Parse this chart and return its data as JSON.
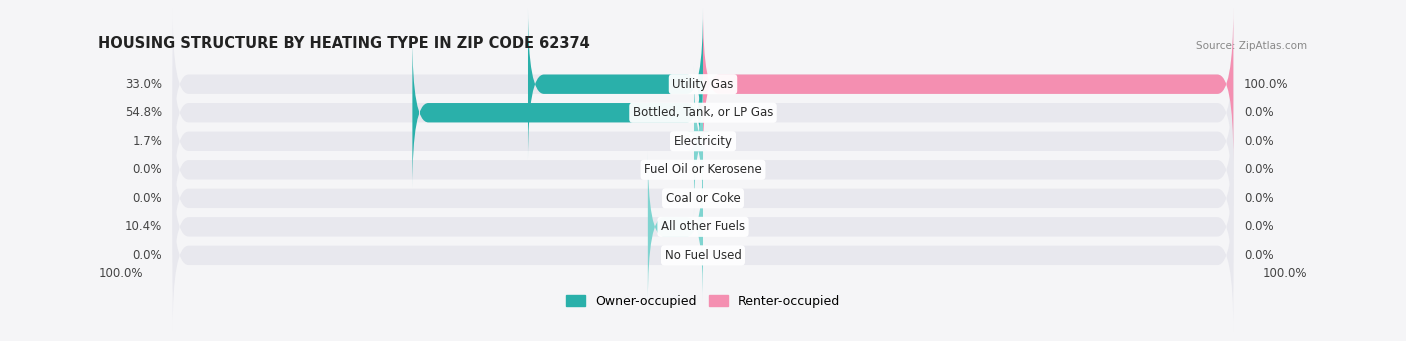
{
  "title": "HOUSING STRUCTURE BY HEATING TYPE IN ZIP CODE 62374",
  "source": "Source: ZipAtlas.com",
  "categories": [
    "Utility Gas",
    "Bottled, Tank, or LP Gas",
    "Electricity",
    "Fuel Oil or Kerosene",
    "Coal or Coke",
    "All other Fuels",
    "No Fuel Used"
  ],
  "owner_values": [
    33.0,
    54.8,
    1.7,
    0.0,
    0.0,
    10.4,
    0.0
  ],
  "renter_values": [
    100.0,
    0.0,
    0.0,
    0.0,
    0.0,
    0.0,
    0.0
  ],
  "owner_color_dark": "#2ab0aa",
  "owner_color_light": "#7fd4d0",
  "renter_color": "#f48fb1",
  "bar_bg_color": "#e8e8ee",
  "background_color": "#f5f5f7",
  "max_val": 100.0,
  "bar_height": 0.68,
  "title_fontsize": 10.5,
  "label_fontsize": 8.5,
  "category_fontsize": 8.5,
  "owner_legend": "Owner-occupied",
  "renter_legend": "Renter-occupied",
  "fig_width": 14.06,
  "fig_height": 3.41,
  "dpi": 100
}
